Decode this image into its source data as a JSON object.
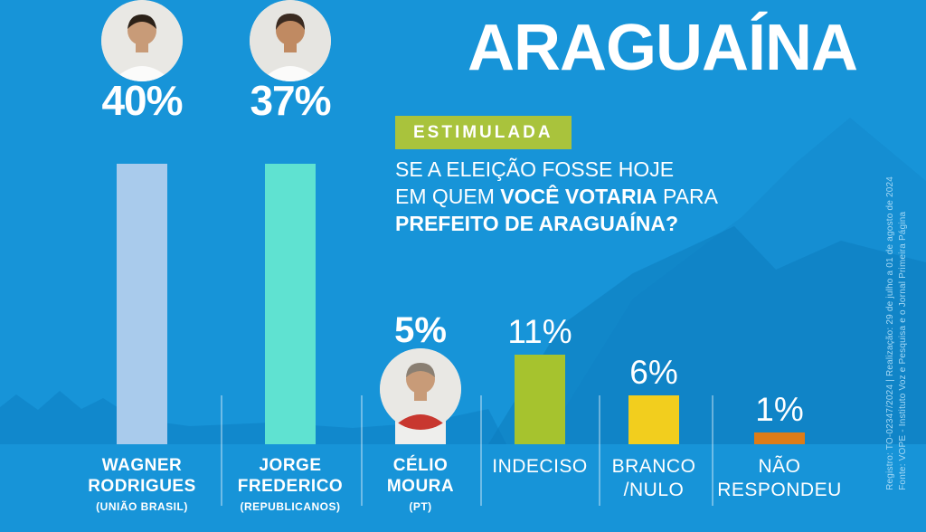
{
  "title": "ARAGUAÍNA",
  "badge": "ESTIMULADA",
  "question": {
    "line1": "SE A ELEIÇÃO FOSSE HOJE",
    "line2_pre": "EM QUEM ",
    "line2_bold": "VOCÊ VOTARIA",
    "line2_post": " PARA",
    "line3": "PREFEITO DE ARAGUAÍNA?"
  },
  "footnote": {
    "line1": "Registro: TO-02347/2024  |  Realização: 29 de julho a 01 de agosto de 2024",
    "line2": "Fonte: VOPE - Instituto Voz e Pesquisa e o Jornal Primeira Página"
  },
  "colors": {
    "background": "#1794d8",
    "mountain_dark": "#0c7bbe",
    "badge_green": "#a9c33c",
    "bar_wagner": "#a9cbec",
    "bar_jorge": "#5fe2d1",
    "bar_celio": "#eeeeec",
    "bar_indeciso": "#a6c32e",
    "bar_branco": "#f2ce1e",
    "bar_nao_respondeu": "#dd7c17",
    "footnote_text": "#a5d8f5"
  },
  "chart_data": {
    "type": "bar",
    "title": "ARAGUAÍNA",
    "subtitle": "ESTIMULADA",
    "question": "SE A ELEIÇÃO FOSSE HOJE EM QUEM VOCÊ VOTARIA PARA PREFEITO DE ARAGUAÍNA?",
    "categories": [
      "Wagner Rodrigues (União Brasil)",
      "Jorge Frederico (Republicanos)",
      "Célio Moura (PT)",
      "Indeciso",
      "Branco/Nulo",
      "Não Respondeu"
    ],
    "values": [
      40,
      37,
      5,
      11,
      6,
      1
    ],
    "ylim": [
      0,
      40
    ],
    "grid": false,
    "columns": [
      {
        "id": "wagner",
        "pct_label": "40%",
        "value": 40,
        "name_lines": [
          "WAGNER",
          "RODRIGUES"
        ],
        "party": "(UNIÃO BRASIL)",
        "bar_color": "#a9cbec"
      },
      {
        "id": "jorge",
        "pct_label": "37%",
        "value": 37,
        "name_lines": [
          "JORGE",
          "FREDERICO"
        ],
        "party": "(REPUBLICANOS)",
        "bar_color": "#5fe2d1"
      },
      {
        "id": "celio",
        "pct_label": "5%",
        "value": 5,
        "name_lines": [
          "CÉLIO",
          "MOURA"
        ],
        "party": "(PT)",
        "bar_color": "#eeeeec"
      },
      {
        "id": "indeciso",
        "pct_label": "11%",
        "value": 11,
        "name_lines": [
          "INDECISO"
        ],
        "bar_color": "#a6c32e"
      },
      {
        "id": "branco-nulo",
        "pct_label": "6%",
        "value": 6,
        "name_lines": [
          "BRANCO",
          "/NULO"
        ],
        "bar_color": "#f2ce1e"
      },
      {
        "id": "nao-respondeu",
        "pct_label": "1%",
        "value": 1,
        "name_lines": [
          "NÃO",
          "RESPONDEU"
        ],
        "bar_color": "#dd7c17"
      }
    ]
  }
}
